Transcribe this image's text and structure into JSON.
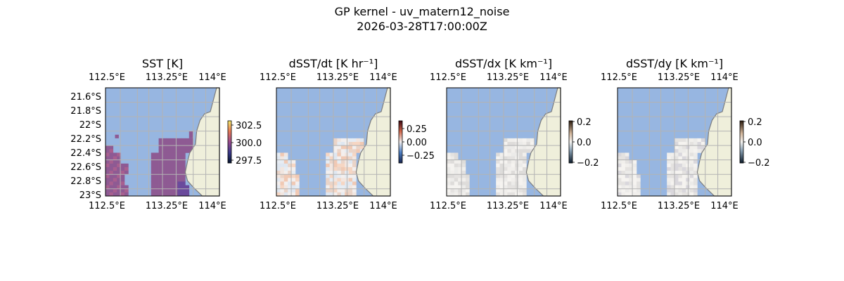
{
  "figure": {
    "title_line1": "GP kernel - uv_matern12_noise",
    "title_line2": "2026-03-28T17:00:00Z"
  },
  "colors": {
    "ocean": "#97b6e1",
    "land": "#efefdb",
    "coast": "#7d7d7d",
    "grid": "#b3b3b3"
  },
  "chart_data": [
    {
      "type": "heatmap",
      "title": "SST [K]",
      "xlim": [
        112.5,
        114.0
      ],
      "ylim": [
        -23.0,
        -21.5
      ],
      "x_ticks": [
        "112.5°E",
        "113.25°E",
        "114°E"
      ],
      "y_ticks": [
        "21.6°S",
        "21.8°S",
        "22°S",
        "22.2°S",
        "22.4°S",
        "22.6°S",
        "22.8°S",
        "23°S"
      ],
      "colorbar": {
        "ticks": [
          "302.5",
          "300.0",
          "297.5"
        ],
        "range": [
          297.0,
          303.5
        ],
        "cmap": "thermal"
      },
      "color_hex": "#8e5a93",
      "value_typical": 300.5
    },
    {
      "type": "heatmap",
      "title": "dSST/dt [K hr⁻¹]",
      "xlim": [
        112.5,
        114.0
      ],
      "ylim": [
        -23.0,
        -21.5
      ],
      "x_ticks": [
        "112.5°E",
        "113.25°E",
        "114°E"
      ],
      "y_ticks": [],
      "colorbar": {
        "ticks": [
          "0.25",
          "0.00",
          "−0.25"
        ],
        "range": [
          -0.4,
          0.4
        ],
        "cmap": "balance"
      },
      "value_typical": 0.0
    },
    {
      "type": "heatmap",
      "title": "dSST/dx [K km⁻¹]",
      "xlim": [
        112.5,
        114.0
      ],
      "ylim": [
        -23.0,
        -21.5
      ],
      "x_ticks": [
        "112.5°E",
        "113.25°E",
        "114°E"
      ],
      "y_ticks": [],
      "colorbar": {
        "ticks": [
          "0.2",
          "0.0",
          "−0.2"
        ],
        "range": [
          -0.2,
          0.2
        ],
        "cmap": "diff"
      },
      "value_typical": 0.0
    },
    {
      "type": "heatmap",
      "title": "dSST/dy [K km⁻¹]",
      "xlim": [
        112.5,
        114.0
      ],
      "ylim": [
        -23.0,
        -21.5
      ],
      "x_ticks": [
        "112.5°E",
        "113.25°E",
        "114°E"
      ],
      "y_ticks": [],
      "colorbar": {
        "ticks": [
          "0.2",
          "0.0",
          "−0.2"
        ],
        "range": [
          -0.2,
          0.2
        ],
        "cmap": "diff"
      },
      "value_typical": 0.0
    }
  ]
}
